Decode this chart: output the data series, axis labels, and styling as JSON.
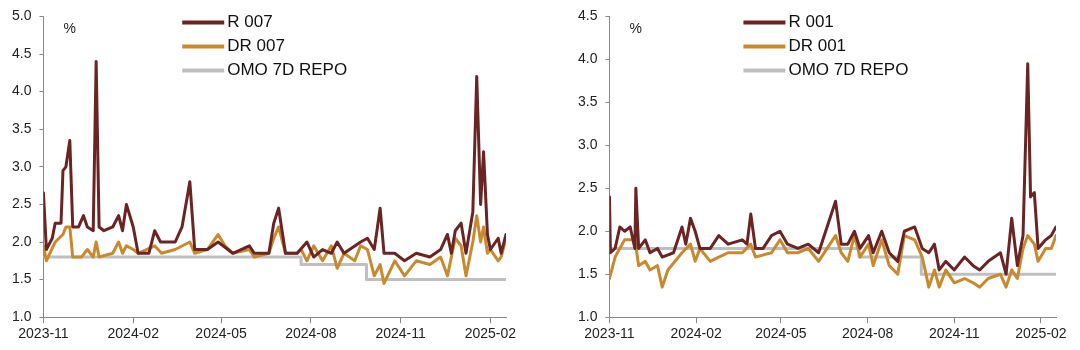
{
  "chart_data": [
    {
      "type": "line",
      "ylabel": "%",
      "legend": "top",
      "grid": false,
      "marker": "none",
      "line_style": "solid",
      "xlim": [
        "2023-11-01",
        "2025-02-17"
      ],
      "xticks": [
        "2023-11",
        "2024-02",
        "2024-05",
        "2024-08",
        "2024-11",
        "2025-02"
      ],
      "ylim": [
        1.0,
        5.0
      ],
      "yticks": [
        {
          "value": 1.0,
          "label": "1.0"
        },
        {
          "value": 1.5,
          "label": "1.5"
        },
        {
          "value": 2.0,
          "label": "2.0"
        },
        {
          "value": 2.5,
          "label": "2.5"
        },
        {
          "value": 3.0,
          "label": "3.0"
        },
        {
          "value": 3.5,
          "label": "3.5"
        },
        {
          "value": 4.0,
          "label": "4.0"
        },
        {
          "value": 4.5,
          "label": "4.5"
        },
        {
          "value": 5.0,
          "label": "5.0"
        }
      ],
      "series": [
        {
          "name": "R 007",
          "color": "#6b2424",
          "x": [
            "2023-11-01",
            "2023-11-04",
            "2023-11-10",
            "2023-11-13",
            "2023-11-19",
            "2023-11-21",
            "2023-11-24",
            "2023-11-28",
            "2023-12-01",
            "2023-12-07",
            "2023-12-12",
            "2023-12-16",
            "2023-12-22",
            "2023-12-25",
            "2023-12-28",
            "2024-01-02",
            "2024-01-11",
            "2024-01-17",
            "2024-01-21",
            "2024-01-25",
            "2024-02-01",
            "2024-02-06",
            "2024-02-17",
            "2024-02-23",
            "2024-02-29",
            "2024-03-15",
            "2024-03-22",
            "2024-03-30",
            "2024-04-04",
            "2024-04-17",
            "2024-04-28",
            "2024-05-13",
            "2024-05-30",
            "2024-06-04",
            "2024-06-19",
            "2024-06-24",
            "2024-06-29",
            "2024-07-06",
            "2024-07-18",
            "2024-07-28",
            "2024-08-04",
            "2024-08-13",
            "2024-08-22",
            "2024-08-28",
            "2024-09-04",
            "2024-09-21",
            "2024-09-28",
            "2024-10-05",
            "2024-10-11",
            "2024-10-15",
            "2024-10-26",
            "2024-11-05",
            "2024-11-17",
            "2024-12-01",
            "2024-12-12",
            "2024-12-19",
            "2024-12-23",
            "2024-12-27",
            "2025-01-02",
            "2025-01-07",
            "2025-01-14",
            "2025-01-18",
            "2025-01-22",
            "2025-01-25",
            "2025-01-29",
            "2025-02-01",
            "2025-02-09",
            "2025-02-12",
            "2025-02-17"
          ],
          "values": [
            2.65,
            1.9,
            2.05,
            2.25,
            2.25,
            2.95,
            3.0,
            3.35,
            2.2,
            2.2,
            2.35,
            2.2,
            2.15,
            4.4,
            2.2,
            2.15,
            2.2,
            2.35,
            2.15,
            2.5,
            2.2,
            1.85,
            1.85,
            2.15,
            2.0,
            2.0,
            2.2,
            2.8,
            1.9,
            1.9,
            2.0,
            1.85,
            1.95,
            1.85,
            1.85,
            2.25,
            2.45,
            1.85,
            1.85,
            2.0,
            1.8,
            1.9,
            1.85,
            2.0,
            1.85,
            2.0,
            2.05,
            1.9,
            2.45,
            1.85,
            1.85,
            1.75,
            1.85,
            1.8,
            1.9,
            2.1,
            1.85,
            2.15,
            2.25,
            1.85,
            2.4,
            4.2,
            2.5,
            3.2,
            2.1,
            1.9,
            2.05,
            1.85,
            2.1
          ]
        },
        {
          "name": "DR 007",
          "color": "#c8892f",
          "x": [
            "2023-11-01",
            "2023-11-04",
            "2023-11-13",
            "2023-11-21",
            "2023-11-24",
            "2023-11-28",
            "2023-12-01",
            "2023-12-10",
            "2023-12-16",
            "2023-12-22",
            "2023-12-25",
            "2023-12-28",
            "2024-01-11",
            "2024-01-17",
            "2024-01-21",
            "2024-01-25",
            "2024-02-01",
            "2024-02-06",
            "2024-02-23",
            "2024-03-01",
            "2024-03-15",
            "2024-03-30",
            "2024-04-04",
            "2024-04-17",
            "2024-04-28",
            "2024-05-05",
            "2024-05-13",
            "2024-05-30",
            "2024-06-04",
            "2024-06-19",
            "2024-06-24",
            "2024-06-29",
            "2024-07-06",
            "2024-07-18",
            "2024-07-22",
            "2024-07-28",
            "2024-08-04",
            "2024-08-13",
            "2024-08-22",
            "2024-08-28",
            "2024-09-04",
            "2024-09-15",
            "2024-09-21",
            "2024-09-28",
            "2024-10-05",
            "2024-10-11",
            "2024-10-15",
            "2024-10-26",
            "2024-11-05",
            "2024-11-17",
            "2024-12-01",
            "2024-12-12",
            "2024-12-19",
            "2024-12-27",
            "2025-01-02",
            "2025-01-07",
            "2025-01-14",
            "2025-01-18",
            "2025-01-22",
            "2025-01-25",
            "2025-01-29",
            "2025-02-01",
            "2025-02-09",
            "2025-02-12",
            "2025-02-17"
          ],
          "values": [
            1.95,
            1.75,
            2.0,
            2.1,
            2.2,
            2.2,
            1.8,
            1.8,
            1.9,
            1.8,
            2.0,
            1.8,
            1.85,
            2.0,
            1.85,
            1.95,
            1.9,
            1.85,
            1.95,
            1.85,
            1.9,
            2.0,
            1.85,
            1.9,
            2.1,
            1.95,
            1.85,
            1.9,
            1.8,
            1.85,
            2.05,
            2.2,
            1.85,
            1.85,
            1.9,
            1.75,
            1.95,
            1.75,
            1.95,
            1.65,
            1.85,
            1.75,
            1.95,
            1.9,
            1.55,
            1.7,
            1.45,
            1.75,
            1.55,
            1.75,
            1.7,
            1.8,
            1.55,
            2.05,
            1.95,
            1.55,
            2.0,
            2.35,
            2.0,
            2.2,
            1.85,
            1.9,
            1.75,
            1.8,
            2.05
          ]
        },
        {
          "name": "OMO 7D REPO",
          "color": "#bfbfbf",
          "type": "step",
          "x": [
            "2023-11-01",
            "2024-07-22",
            "2024-09-27",
            "2025-02-17"
          ],
          "values": [
            1.8,
            1.7,
            1.5,
            1.5
          ]
        }
      ]
    },
    {
      "type": "line",
      "ylabel": "%",
      "legend": "top",
      "grid": false,
      "marker": "none",
      "line_style": "solid",
      "xlim": [
        "2023-11-01",
        "2025-02-17"
      ],
      "xticks": [
        "2023-11",
        "2024-02",
        "2024-05",
        "2024-08",
        "2024-11",
        "2025-02"
      ],
      "ylim": [
        1.0,
        4.5
      ],
      "yticks": [
        {
          "value": 1.0,
          "label": "1.0"
        },
        {
          "value": 1.5,
          "label": "1.5"
        },
        {
          "value": 2.0,
          "label": "2.0"
        },
        {
          "value": 2.5,
          "label": "2.5"
        },
        {
          "value": 3.0,
          "label": "3.0"
        },
        {
          "value": 3.5,
          "label": "3.5"
        },
        {
          "value": 4.0,
          "label": "4.0"
        },
        {
          "value": 4.5,
          "label": "4.5"
        }
      ],
      "series": [
        {
          "name": "R 001",
          "color": "#6b2424",
          "x": [
            "2023-11-01",
            "2023-11-02",
            "2023-11-07",
            "2023-11-12",
            "2023-11-17",
            "2023-11-23",
            "2023-11-28",
            "2023-11-29",
            "2023-12-02",
            "2023-12-09",
            "2023-12-14",
            "2023-12-22",
            "2023-12-27",
            "2024-01-08",
            "2024-01-17",
            "2024-01-21",
            "2024-01-26",
            "2024-01-31",
            "2024-02-05",
            "2024-02-16",
            "2024-02-25",
            "2024-03-06",
            "2024-03-21",
            "2024-03-26",
            "2024-03-30",
            "2024-04-04",
            "2024-04-12",
            "2024-04-21",
            "2024-04-30",
            "2024-05-08",
            "2024-05-19",
            "2024-05-30",
            "2024-06-10",
            "2024-06-19",
            "2024-06-28",
            "2024-07-04",
            "2024-07-11",
            "2024-07-18",
            "2024-07-24",
            "2024-08-02",
            "2024-08-07",
            "2024-08-16",
            "2024-08-24",
            "2024-09-02",
            "2024-09-09",
            "2024-09-20",
            "2024-09-28",
            "2024-10-05",
            "2024-10-11",
            "2024-10-16",
            "2024-10-23",
            "2024-11-01",
            "2024-11-12",
            "2024-11-21",
            "2024-11-28",
            "2024-12-07",
            "2024-12-20",
            "2024-12-26",
            "2025-01-01",
            "2025-01-07",
            "2025-01-13",
            "2025-01-18",
            "2025-01-21",
            "2025-01-25",
            "2025-01-29",
            "2025-02-06",
            "2025-02-12",
            "2025-02-17"
          ],
          "values": [
            2.4,
            1.75,
            1.8,
            2.05,
            2.0,
            2.05,
            1.8,
            2.5,
            1.8,
            1.9,
            1.75,
            1.8,
            1.7,
            1.75,
            2.05,
            1.85,
            2.15,
            2.0,
            1.8,
            1.8,
            1.95,
            1.85,
            1.9,
            1.85,
            2.2,
            1.8,
            1.8,
            1.95,
            2.0,
            1.85,
            1.8,
            1.85,
            1.75,
            2.05,
            2.35,
            1.85,
            1.85,
            2.0,
            1.8,
            1.95,
            1.75,
            2.0,
            1.75,
            1.65,
            2.0,
            2.05,
            1.8,
            1.75,
            1.85,
            1.55,
            1.65,
            1.55,
            1.7,
            1.6,
            1.55,
            1.65,
            1.75,
            1.5,
            2.15,
            1.6,
            1.95,
            3.95,
            2.4,
            2.45,
            1.8,
            1.9,
            1.95,
            2.05
          ]
        },
        {
          "name": "DR 001",
          "color": "#c8892f",
          "x": [
            "2023-11-01",
            "2023-11-07",
            "2023-11-17",
            "2023-11-28",
            "2023-12-02",
            "2023-12-09",
            "2023-12-14",
            "2023-12-22",
            "2023-12-27",
            "2024-01-02",
            "2024-01-17",
            "2024-01-26",
            "2024-01-31",
            "2024-02-05",
            "2024-02-16",
            "2024-02-25",
            "2024-03-06",
            "2024-03-21",
            "2024-03-30",
            "2024-04-04",
            "2024-04-21",
            "2024-04-30",
            "2024-05-08",
            "2024-05-19",
            "2024-05-30",
            "2024-06-10",
            "2024-06-19",
            "2024-06-28",
            "2024-07-04",
            "2024-07-11",
            "2024-07-18",
            "2024-07-24",
            "2024-08-02",
            "2024-08-07",
            "2024-08-16",
            "2024-08-24",
            "2024-09-02",
            "2024-09-09",
            "2024-09-20",
            "2024-09-28",
            "2024-10-05",
            "2024-10-11",
            "2024-10-16",
            "2024-10-23",
            "2024-11-01",
            "2024-11-12",
            "2024-11-21",
            "2024-11-28",
            "2024-12-07",
            "2024-12-20",
            "2024-12-26",
            "2025-01-01",
            "2025-01-07",
            "2025-01-13",
            "2025-01-18",
            "2025-01-25",
            "2025-01-29",
            "2025-02-06",
            "2025-02-12",
            "2025-02-17"
          ],
          "values": [
            1.45,
            1.7,
            1.9,
            1.9,
            1.6,
            1.65,
            1.55,
            1.6,
            1.35,
            1.55,
            1.75,
            1.85,
            1.65,
            1.8,
            1.65,
            1.7,
            1.75,
            1.75,
            1.85,
            1.7,
            1.75,
            1.9,
            1.75,
            1.75,
            1.8,
            1.65,
            1.8,
            1.95,
            1.75,
            1.65,
            1.95,
            1.7,
            1.85,
            1.6,
            1.9,
            1.6,
            1.5,
            1.95,
            1.9,
            1.7,
            1.35,
            1.55,
            1.35,
            1.55,
            1.4,
            1.45,
            1.4,
            1.35,
            1.45,
            1.5,
            1.35,
            1.55,
            1.45,
            1.8,
            1.95,
            1.85,
            1.65,
            1.8,
            1.8,
            1.95
          ]
        },
        {
          "name": "OMO 7D REPO",
          "color": "#bfbfbf",
          "type": "step",
          "x": [
            "2023-11-01",
            "2024-07-23",
            "2024-09-27",
            "2025-02-17"
          ],
          "values": [
            1.8,
            1.7,
            1.5,
            1.5
          ]
        }
      ]
    }
  ]
}
